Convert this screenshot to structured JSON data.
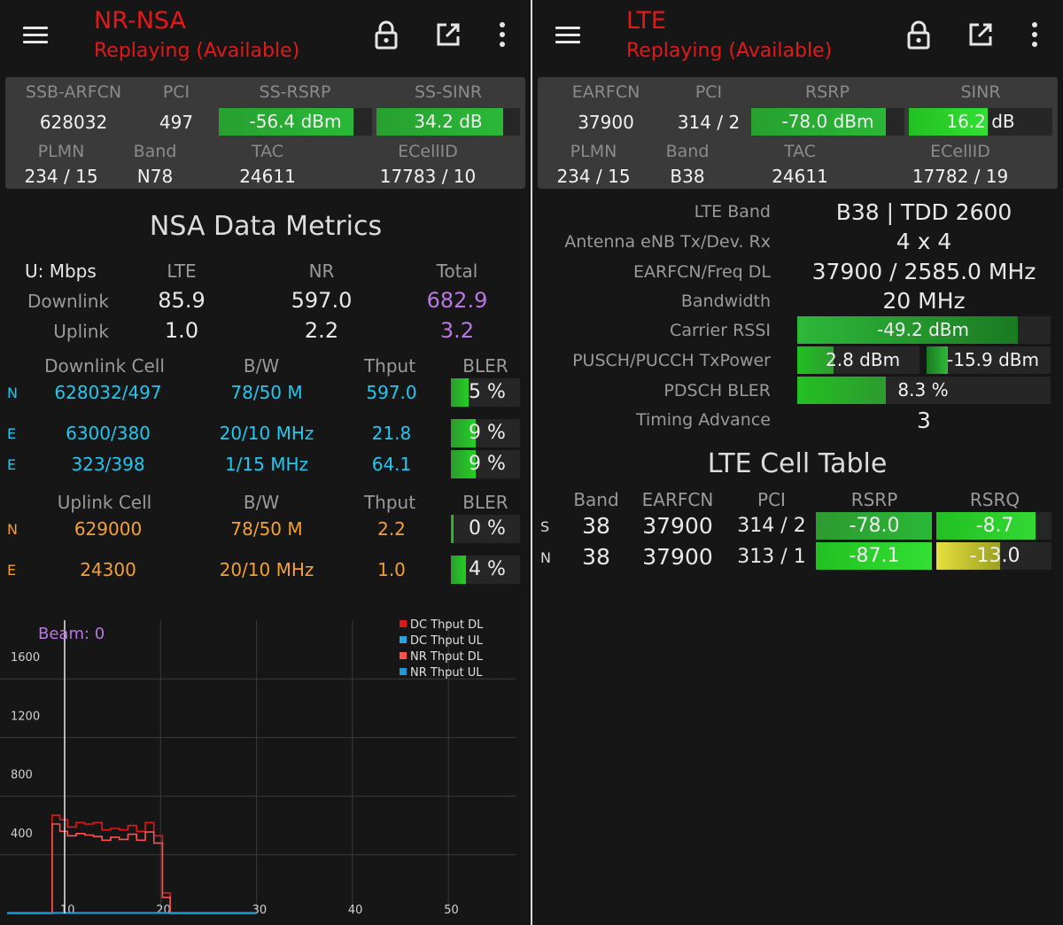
{
  "left": {
    "title": "NR-NSA",
    "subtitle": "Replaying (Available)",
    "icons": {
      "menu": "menu-icon",
      "lock": "lock-icon",
      "popout": "open-external-icon",
      "more": "more-vert-icon"
    },
    "info": {
      "h1": "SSB-ARFCN",
      "h2": "PCI",
      "h3": "SS-RSRP",
      "h4": "SS-SINR",
      "v1": "628032",
      "v2": "497",
      "rsrp": "-56.4 dBm",
      "sinr": "34.2 dB",
      "rsrp_fill": 0.88,
      "sinr_fill": 0.88,
      "h5": "PLMN",
      "h6": "Band",
      "h7": "TAC",
      "h8": "ECellID",
      "v5": "234 / 15",
      "v6": "N78",
      "v7": "24611",
      "v8": "17783 / 10"
    },
    "metrics": {
      "title": "NSA Data Metrics",
      "unit": "U: Mbps",
      "col_lte": "LTE",
      "col_nr": "NR",
      "col_total": "Total",
      "dl_label": "Downlink",
      "dl_lte": "85.9",
      "dl_nr": "597.0",
      "dl_total": "682.9",
      "ul_label": "Uplink",
      "ul_lte": "1.0",
      "ul_nr": "2.2",
      "ul_total": "3.2"
    },
    "dl_cells": {
      "h_cell": "Downlink Cell",
      "h_bw": "B/W",
      "h_thput": "Thput",
      "h_bler": "BLER",
      "rows": [
        {
          "tag": "N",
          "cell": "628032/497",
          "bw": "78/50 M",
          "thput": "597.0",
          "bler": "5 %",
          "bler_fill": 0.25
        },
        {
          "tag": "E",
          "cell": "6300/380",
          "bw": "20/10 MHz",
          "thput": "21.8",
          "bler": "9 %",
          "bler_fill": 0.36
        },
        {
          "tag": "E",
          "cell": "323/398",
          "bw": "1/15 MHz",
          "thput": "64.1",
          "bler": "9 %",
          "bler_fill": 0.36
        }
      ]
    },
    "ul_cells": {
      "h_cell": "Uplink Cell",
      "h_bw": "B/W",
      "h_thput": "Thput",
      "h_bler": "BLER",
      "rows": [
        {
          "tag": "N",
          "cell": "629000",
          "bw": "78/50 M",
          "thput": "2.2",
          "bler": "0 %",
          "bler_fill": 0.04
        },
        {
          "tag": "E",
          "cell": "24300",
          "bw": "20/10 MHz",
          "thput": "1.0",
          "bler": "4 %",
          "bler_fill": 0.22
        }
      ]
    },
    "beam_label": "Beam: 0"
  },
  "chart_data": {
    "type": "line",
    "title": "",
    "annotation": "Beam: 0",
    "xlabel": "",
    "ylabel": "",
    "xlim": [
      4,
      57
    ],
    "ylim": [
      0,
      2000
    ],
    "x_ticks": [
      "10",
      "20",
      "30",
      "40",
      "50"
    ],
    "y_ticks": [
      "400",
      "800",
      "1200",
      "1600"
    ],
    "legend_position": "top-right",
    "marker_x": 10,
    "series": [
      {
        "name": "DC Thput DL",
        "color": "#e01818",
        "step": true,
        "x": [
          4,
          7.8,
          8.7,
          9.5,
          10.3,
          11.2,
          12.1,
          13.0,
          13.9,
          14.8,
          15.7,
          16.6,
          17.5,
          18.4,
          19.3,
          20.2,
          21.0,
          22.5,
          25.0,
          27.0,
          30.0
        ],
        "y": [
          0,
          0,
          670,
          640,
          590,
          620,
          610,
          620,
          570,
          580,
          570,
          600,
          560,
          620,
          530,
          140,
          0,
          0,
          0,
          0,
          0
        ]
      },
      {
        "name": "DC Thput UL",
        "color": "#2aa4e0",
        "step": true,
        "x": [
          4,
          30
        ],
        "y": [
          5,
          5
        ]
      },
      {
        "name": "NR Thput DL",
        "color": "#ff5050",
        "step": true,
        "x": [
          4,
          7.8,
          8.7,
          9.5,
          10.3,
          11.2,
          12.1,
          13.0,
          13.9,
          14.8,
          15.7,
          16.6,
          17.5,
          18.4,
          19.3,
          20.2,
          21.0,
          22.5,
          25.0,
          27.0,
          30.0
        ],
        "y": [
          0,
          0,
          610,
          560,
          530,
          545,
          535,
          525,
          500,
          520,
          505,
          540,
          500,
          555,
          480,
          110,
          0,
          0,
          0,
          0,
          0
        ]
      },
      {
        "name": "NR Thput UL",
        "color": "#1a9ad8",
        "step": true,
        "x": [
          4,
          30
        ],
        "y": [
          2,
          2
        ]
      }
    ]
  },
  "right": {
    "title": "LTE",
    "subtitle": "Replaying (Available)",
    "icons": {
      "menu": "menu-icon",
      "lock": "lock-icon",
      "popout": "open-external-icon",
      "more": "more-vert-icon"
    },
    "info": {
      "h1": "EARFCN",
      "h2": "PCI",
      "h3": "RSRP",
      "h4": "SINR",
      "v1": "37900",
      "v2": "314 / 2",
      "rsrp": "-78.0 dBm",
      "sinr": "16.2 dB",
      "rsrp_fill": 0.88,
      "sinr_fill": 0.55,
      "h5": "PLMN",
      "h6": "Band",
      "h7": "TAC",
      "h8": "ECellID",
      "v5": "234 / 15",
      "v6": "B38",
      "v7": "24611",
      "v8": "17782 / 19"
    },
    "details": {
      "band_label": "LTE Band",
      "band_value": "B38 | TDD 2600",
      "antenna_label": "Antenna eNB Tx/Dev. Rx",
      "antenna_value": "4 x 4",
      "earfcn_label": "EARFCN/Freq DL",
      "earfcn_value": "37900 / 2585.0 MHz",
      "bw_label": "Bandwidth",
      "bw_value": "20 MHz",
      "rssi_label": "Carrier RSSI",
      "rssi_value": "-49.2 dBm",
      "rssi_fill": 0.87,
      "txp_label": "PUSCH/PUCCH TxPower",
      "pusch_value": "2.8 dBm",
      "pusch_fill": 0.3,
      "pucch_value": "-15.9 dBm",
      "pucch_fill": 0.17,
      "bler_label": "PDSCH BLER",
      "bler_value": "8.3 %",
      "bler_fill": 0.35,
      "ta_label": "Timing Advance",
      "ta_value": "3"
    },
    "cell_table": {
      "title": "LTE Cell Table",
      "h_band": "Band",
      "h_earfcn": "EARFCN",
      "h_pci": "PCI",
      "h_rsrp": "RSRP",
      "h_rsrq": "RSRQ",
      "rows": [
        {
          "tag": "S",
          "band": "38",
          "earfcn": "37900",
          "pci": "314 / 2",
          "rsrp": "-78.0",
          "rsrp_fill": 1.0,
          "rsrq": "-8.7",
          "rsrq_fill": 0.86
        },
        {
          "tag": "N",
          "band": "38",
          "earfcn": "37900",
          "pci": "313 / 1",
          "rsrp": "-87.1",
          "rsrp_fill": 1.0,
          "rsrq": "-13.0",
          "rsrq_fill": 0.55
        }
      ]
    }
  }
}
